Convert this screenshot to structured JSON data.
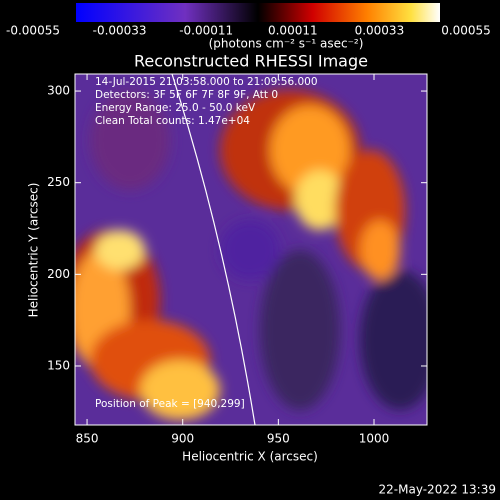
{
  "chart_data": {
    "type": "heatmap",
    "title": "Reconstructed RHESSI Image",
    "x_label": "Heliocentric X (arcsec)",
    "y_label": "Heliocentric Y (arcsec)",
    "xlim": [
      843.7,
      1027.7
    ],
    "xticks": [
      850,
      900,
      950,
      1000
    ],
    "ylim": [
      117.8,
      309.3
    ],
    "yticks": [
      150,
      200,
      250,
      300
    ],
    "colorbar": {
      "lim": [
        -0.00055,
        0.00055
      ],
      "ticks": [
        -0.00055,
        -0.00033,
        -0.00011,
        0.00011,
        0.00033,
        0.00055
      ],
      "label": "(photons cm⁻² s⁻¹ asec⁻²)"
    },
    "annotations": [
      "14-Jul-2015 21:03:58.000 to 21:09:56.000",
      "Detectors: 3F 5F 6F 7F 8F 9F, Att 0",
      "Energy Range: 25.0 - 50.0 keV",
      "Clean     Total counts: 1.47e+04"
    ],
    "peak_note": "Position of Peak = [940,299]",
    "timestamp": "22-May-2022 13:39"
  }
}
